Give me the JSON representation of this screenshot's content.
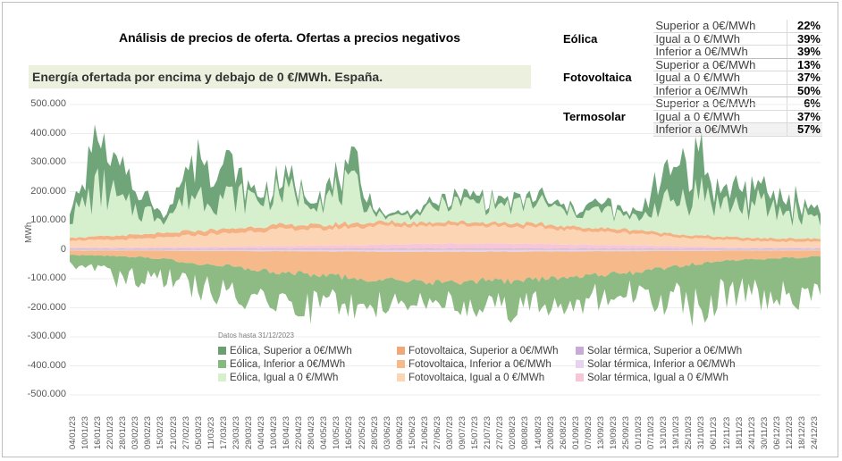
{
  "page": {
    "title": "Análisis de precios de oferta. Ofertas a precios negativos",
    "subtitle": "Energía ofertada por encima y debajo de 0 €/MWh. España.",
    "note": "Datos hasta 31/12/2023"
  },
  "summary": [
    {
      "source": "Eólica",
      "rows": [
        {
          "label": "Superior a 0€/MWh",
          "pct": "22%"
        },
        {
          "label": "Igual a 0 €/MWh",
          "pct": "39%"
        },
        {
          "label": "Inferior a 0€/MWh",
          "pct": "39%"
        }
      ]
    },
    {
      "source": "Fotovoltaica",
      "rows": [
        {
          "label": "Superior a 0€/MWh",
          "pct": "13%"
        },
        {
          "label": "Igual a 0 €/MWh",
          "pct": "37%"
        },
        {
          "label": "Inferior a 0€/MWh",
          "pct": "50%"
        }
      ]
    },
    {
      "source": "Termosolar",
      "rows": [
        {
          "label": "Superior a 0€/MWh",
          "pct": "6%"
        },
        {
          "label": "Igual a 0 €/MWh",
          "pct": "37%"
        },
        {
          "label": "Inferior a 0€/MWh",
          "pct": "57%"
        }
      ]
    }
  ],
  "chart_data": {
    "type": "area",
    "title": "Energía ofertada por encima y debajo de 0 €/MWh. España.",
    "ylabel": "MWh",
    "ylim": [
      -500000,
      500000
    ],
    "y_ticks": [
      "500.000",
      "400.000",
      "300.000",
      "200.000",
      "100.000",
      "0",
      "-100.000",
      "-200.000",
      "-300.000",
      "-400.000",
      "-500.000"
    ],
    "grid": true,
    "legend_position": "bottom",
    "x_ticks": [
      "04/01/23",
      "10/01/23",
      "16/01/23",
      "22/01/23",
      "28/01/23",
      "03/02/23",
      "09/02/23",
      "15/02/23",
      "21/02/23",
      "27/02/23",
      "05/03/23",
      "11/03/23",
      "17/03/23",
      "23/03/23",
      "29/03/23",
      "04/04/23",
      "10/04/23",
      "16/04/23",
      "22/04/23",
      "28/04/23",
      "04/05/23",
      "10/05/23",
      "16/05/23",
      "22/05/23",
      "28/05/23",
      "03/06/23",
      "09/06/23",
      "15/06/23",
      "21/06/23",
      "27/06/23",
      "03/07/23",
      "09/07/23",
      "15/07/23",
      "21/07/23",
      "27/07/23",
      "02/08/23",
      "08/08/23",
      "14/08/23",
      "20/08/23",
      "26/08/23",
      "01/09/23",
      "07/09/23",
      "13/09/23",
      "19/09/23",
      "25/09/23",
      "01/10/23",
      "07/10/23",
      "13/10/23",
      "19/10/23",
      "25/10/23",
      "31/10/23",
      "06/11/23",
      "12/11/23",
      "18/11/23",
      "24/11/23",
      "30/11/23",
      "06/12/23",
      "12/12/23",
      "18/12/23",
      "24/12/23"
    ],
    "x_sample": [
      "01/01/23",
      "16/01/23",
      "01/02/23",
      "16/02/23",
      "01/03/23",
      "16/03/23",
      "01/04/23",
      "16/04/23",
      "01/05/23",
      "16/05/23",
      "01/06/23",
      "16/06/23",
      "01/07/23",
      "16/07/23",
      "01/08/23",
      "16/08/23",
      "01/09/23",
      "16/09/23",
      "01/10/23",
      "16/10/23",
      "01/11/23",
      "16/11/23",
      "01/12/23",
      "16/12/23",
      "31/12/23"
    ],
    "positive_stack": [
      {
        "name": "Solar térmica, Superior a 0€/MWh",
        "color": "#c9a9d6",
        "values": [
          3000,
          3000,
          3000,
          3000,
          3000,
          3000,
          3000,
          3000,
          3000,
          3000,
          3000,
          3000,
          3000,
          3000,
          3000,
          3000,
          3000,
          3000,
          3000,
          3000,
          3000,
          3000,
          3000,
          3000,
          3000
        ]
      },
      {
        "name": "Solar térmica, Igual a 0 €/MWh",
        "color": "#f7c6d9",
        "values": [
          5000,
          5000,
          5000,
          6000,
          7000,
          8000,
          9000,
          10000,
          12000,
          12000,
          15000,
          16000,
          18000,
          18000,
          18000,
          17000,
          15000,
          13000,
          12000,
          10000,
          8000,
          6000,
          5000,
          5000,
          5000
        ]
      },
      {
        "name": "Fotovoltaica, Igual a 0 €/MWh",
        "color": "#fcd5b5",
        "values": [
          25000,
          25000,
          28000,
          32000,
          40000,
          45000,
          52000,
          58000,
          55000,
          62000,
          65000,
          62000,
          65000,
          62000,
          60000,
          55000,
          50000,
          45000,
          42000,
          35000,
          28000,
          25000,
          22000,
          20000,
          20000
        ]
      },
      {
        "name": "Fotovoltaica, Superior a 0€/MWh",
        "color": "#f4b183",
        "values": [
          10000,
          12000,
          14000,
          15000,
          15000,
          15000,
          15000,
          15000,
          15000,
          14000,
          12000,
          12000,
          12000,
          12000,
          12000,
          12000,
          12000,
          12000,
          12000,
          10000,
          10000,
          10000,
          10000,
          10000,
          10000
        ]
      },
      {
        "name": "Eólica, Igual a 0 €/MWh",
        "color": "#d6efcd",
        "values": [
          80000,
          160000,
          90000,
          60000,
          130000,
          110000,
          100000,
          110000,
          90000,
          120000,
          20000,
          30000,
          60000,
          70000,
          60000,
          70000,
          50000,
          60000,
          40000,
          100000,
          150000,
          110000,
          110000,
          90000,
          80000
        ]
      },
      {
        "name": "Eólica, Superior a 0€/MWh",
        "color": "#70a57a",
        "values": [
          40000,
          180000,
          60000,
          20000,
          120000,
          90000,
          20000,
          40000,
          30000,
          60000,
          10000,
          10000,
          20000,
          20000,
          20000,
          20000,
          15000,
          20000,
          15000,
          100000,
          120000,
          50000,
          60000,
          40000,
          30000
        ]
      }
    ],
    "negative_stack": [
      {
        "name": "Solar térmica, Inferior a 0€/MWh",
        "color": "#e6d3ee",
        "values": [
          -3000,
          -3000,
          -3000,
          -3000,
          -4000,
          -4000,
          -5000,
          -5000,
          -6000,
          -6000,
          -7000,
          -7000,
          -7000,
          -7000,
          -7000,
          -6000,
          -6000,
          -5000,
          -5000,
          -4000,
          -4000,
          -3000,
          -3000,
          -3000,
          -3000
        ]
      },
      {
        "name": "Fotovoltaica, Inferior a 0€/MWh",
        "color": "#f6b98a",
        "values": [
          -15000,
          -18000,
          -22000,
          -28000,
          -45000,
          -50000,
          -65000,
          -75000,
          -80000,
          -90000,
          -100000,
          -100000,
          -105000,
          -100000,
          -100000,
          -95000,
          -90000,
          -80000,
          -75000,
          -60000,
          -45000,
          -35000,
          -30000,
          -25000,
          -20000
        ]
      },
      {
        "name": "Eólica, Inferior a 0€/MWh",
        "color": "#8dbb83",
        "values": [
          -30000,
          -60000,
          -80000,
          -75000,
          -80000,
          -95000,
          -90000,
          -100000,
          -110000,
          -100000,
          -90000,
          -60000,
          -75000,
          -80000,
          -90000,
          -90000,
          -85000,
          -80000,
          -65000,
          -110000,
          -150000,
          -110000,
          -115000,
          -120000,
          -100000
        ]
      }
    ],
    "legend": [
      {
        "name": "Eólica, Superior a 0€/MWh",
        "color": "#6b9e73"
      },
      {
        "name": "Fotovoltaica, Superior a 0€/MWh",
        "color": "#f0a878"
      },
      {
        "name": "Solar térmica, Superior a 0€/MWh",
        "color": "#c9a9d6"
      },
      {
        "name": "Eólica, Inferior a 0€/MWh",
        "color": "#86b97f"
      },
      {
        "name": "Fotovoltaica, Inferior a 0€/MWh",
        "color": "#f6b98a"
      },
      {
        "name": "Solar térmica, Inferior a 0€/MWh",
        "color": "#e6d3ee"
      },
      {
        "name": "Eólica, Igual a 0 €/MWh",
        "color": "#d6efcd"
      },
      {
        "name": "Fotovoltaica, Igual a 0 €/MWh",
        "color": "#fcd5b5"
      },
      {
        "name": "Solar térmica, Igual a 0 €/MWh",
        "color": "#f7c6d9"
      }
    ]
  }
}
